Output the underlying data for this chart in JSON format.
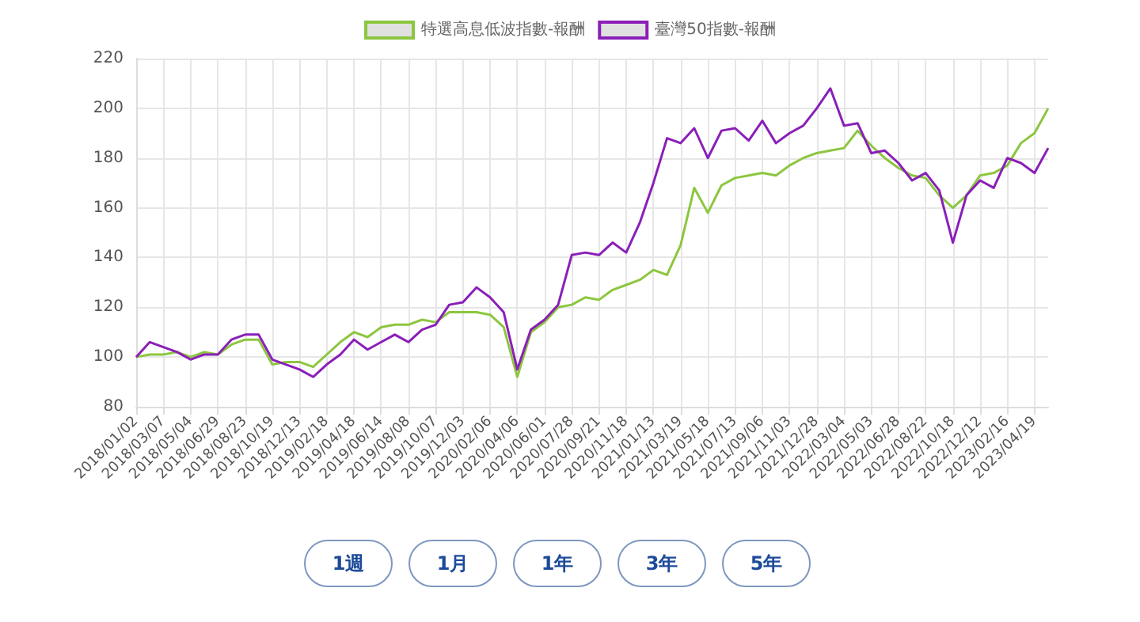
{
  "chart_data": {
    "type": "line",
    "categories": [
      "2018/01/02",
      null,
      "2018/03/07",
      null,
      "2018/05/04",
      null,
      "2018/06/29",
      null,
      "2018/08/23",
      null,
      "2018/10/19",
      null,
      "2018/12/13",
      null,
      "2019/02/18",
      null,
      "2019/04/18",
      null,
      "2019/06/14",
      null,
      "2019/08/08",
      null,
      "2019/10/07",
      null,
      "2019/12/03",
      null,
      "2020/02/06",
      null,
      "2020/04/06",
      null,
      "2020/06/01",
      null,
      "2020/07/28",
      null,
      "2020/09/21",
      null,
      "2020/11/18",
      null,
      "2021/01/13",
      null,
      "2021/03/19",
      null,
      "2021/05/18",
      null,
      "2021/07/13",
      null,
      "2021/09/06",
      null,
      "2021/11/03",
      null,
      "2021/12/28",
      null,
      "2022/03/04",
      null,
      "2022/05/03",
      null,
      "2022/06/28",
      null,
      "2022/08/22",
      null,
      "2022/10/18",
      null,
      "2022/12/12",
      null,
      "2023/02/16",
      null,
      "2023/04/19",
      null
    ],
    "series": [
      {
        "name": "特選高息低波指數-報酬",
        "color": "#8cc63f",
        "values": [
          100,
          101,
          101,
          102,
          100,
          102,
          101,
          105,
          107,
          107,
          97,
          98,
          98,
          96,
          101,
          106,
          110,
          108,
          112,
          113,
          113,
          115,
          114,
          118,
          118,
          118,
          117,
          112,
          92,
          110,
          114,
          120,
          121,
          124,
          123,
          127,
          129,
          131,
          135,
          133,
          145,
          168,
          158,
          169,
          172,
          173,
          174,
          173,
          177,
          180,
          182,
          183,
          184,
          191,
          185,
          180,
          176,
          173,
          172,
          165,
          160,
          165,
          173,
          174,
          177,
          186,
          190,
          200
        ]
      },
      {
        "name": "臺灣50指數-報酬",
        "color": "#8a1fb8",
        "values": [
          100,
          106,
          104,
          102,
          99,
          101,
          101,
          107,
          109,
          109,
          99,
          97,
          95,
          92,
          97,
          101,
          107,
          103,
          106,
          109,
          106,
          111,
          113,
          121,
          122,
          128,
          124,
          118,
          95,
          111,
          115,
          121,
          141,
          142,
          141,
          146,
          142,
          154,
          170,
          188,
          186,
          192,
          180,
          191,
          192,
          187,
          195,
          186,
          190,
          193,
          200,
          208,
          193,
          194,
          182,
          183,
          178,
          171,
          174,
          167,
          146,
          165,
          171,
          168,
          180,
          178,
          174,
          184
        ]
      }
    ],
    "ylim": [
      80,
      220
    ],
    "yticks": [
      80,
      100,
      120,
      140,
      160,
      180,
      200,
      220
    ],
    "grid": true,
    "legend": "top",
    "marker": "none",
    "line_style": "solid",
    "annotations": [
      "1週",
      "1月",
      "1年",
      "3年",
      "5年"
    ]
  }
}
